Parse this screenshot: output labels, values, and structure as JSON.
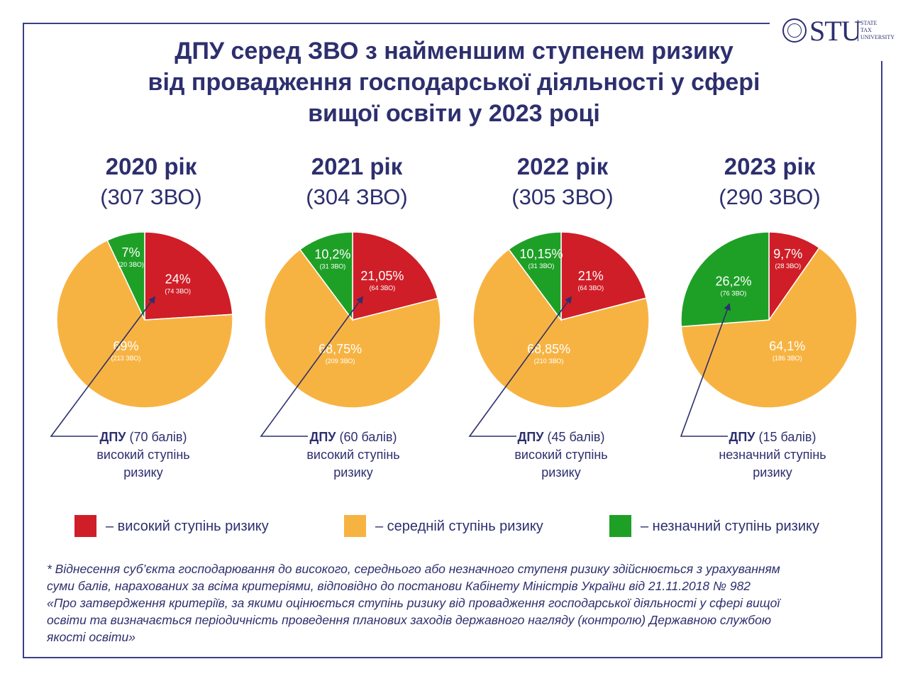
{
  "title_lines": [
    "ДПУ серед ЗВО з найменшим ступенем ризику",
    "від провадження господарської діяльності у сфері",
    "вищої освіти у 2023 році"
  ],
  "logo": {
    "text": "STU",
    "sub": [
      "STATE",
      "TAX",
      "UNIVERSITY"
    ]
  },
  "colors": {
    "high": "#cf1e28",
    "medium": "#f7b342",
    "low": "#1ea027",
    "text": "#2d2f6e"
  },
  "chart_data": [
    {
      "type": "pie",
      "title": "2020 рік",
      "subtitle": "(307 ЗВО)",
      "slices": [
        {
          "pct": 24,
          "label": "24%",
          "sub": "(74 ЗВО)",
          "category": "high"
        },
        {
          "pct": 69,
          "label": "69%",
          "sub": "(213 ЗВО)",
          "category": "medium"
        },
        {
          "pct": 7,
          "label": "7%",
          "sub": "(20 ЗВО)",
          "category": "low"
        }
      ],
      "caption": {
        "bold": "ДПУ",
        "rest": " (70 балів)",
        "lines": [
          "високий ступінь",
          "ризику"
        ]
      }
    },
    {
      "type": "pie",
      "title": "2021 рік",
      "subtitle": "(304 ЗВО)",
      "slices": [
        {
          "pct": 21.05,
          "label": "21,05%",
          "sub": "(64 ЗВО)",
          "category": "high"
        },
        {
          "pct": 68.75,
          "label": "68,75%",
          "sub": "(209 ЗВО)",
          "category": "medium"
        },
        {
          "pct": 10.2,
          "label": "10,2%",
          "sub": "(31 ЗВО)",
          "category": "low"
        }
      ],
      "caption": {
        "bold": "ДПУ",
        "rest": " (60 балів)",
        "lines": [
          "високий ступінь",
          "ризику"
        ]
      }
    },
    {
      "type": "pie",
      "title": "2022 рік",
      "subtitle": "(305 ЗВО)",
      "slices": [
        {
          "pct": 21,
          "label": "21%",
          "sub": "(64 ЗВО)",
          "category": "high"
        },
        {
          "pct": 68.85,
          "label": "68,85%",
          "sub": "(210 ЗВО)",
          "category": "medium"
        },
        {
          "pct": 10.15,
          "label": "10,15%",
          "sub": "(31 ЗВО)",
          "category": "low"
        }
      ],
      "caption": {
        "bold": "ДПУ",
        "rest": " (45 балів)",
        "lines": [
          "високий ступінь",
          "ризику"
        ]
      }
    },
    {
      "type": "pie",
      "title": "2023 рік",
      "subtitle": "(290 ЗВО)",
      "slices": [
        {
          "pct": 9.7,
          "label": "9,7%",
          "sub": "(28 ЗВО)",
          "category": "high"
        },
        {
          "pct": 64.1,
          "label": "64,1%",
          "sub": "(186 ЗВО)",
          "category": "medium"
        },
        {
          "pct": 26.2,
          "label": "26,2%",
          "sub": "(76 ЗВО)",
          "category": "low"
        }
      ],
      "caption": {
        "bold": "ДПУ",
        "rest": " (15 балів)",
        "lines": [
          "незначний ступінь",
          "ризику"
        ]
      }
    }
  ],
  "legend": [
    {
      "category": "high",
      "label": "– високий ступінь ризику"
    },
    {
      "category": "medium",
      "label": "– середній ступінь ризику"
    },
    {
      "category": "low",
      "label": "– незначний ступінь ризику"
    }
  ],
  "footnote_lines": [
    "* Віднесення суб’єкта господарювання до високого, середнього або незначного ступеня ризику здійснюється з урахуванням",
    "суми балів, нарахованих за всіма критеріями, відповідно до постанови Кабінету Міністрів України від 21.11.2018 № 982",
    "«Про затвердження критеріїв, за якими оцінюється ступінь ризику від провадження господарської діяльності у сфері вищої",
    "освіти та визначається періодичність проведення планових заходів державного нагляду (контролю) Державною службою",
    "якості освіти»"
  ]
}
